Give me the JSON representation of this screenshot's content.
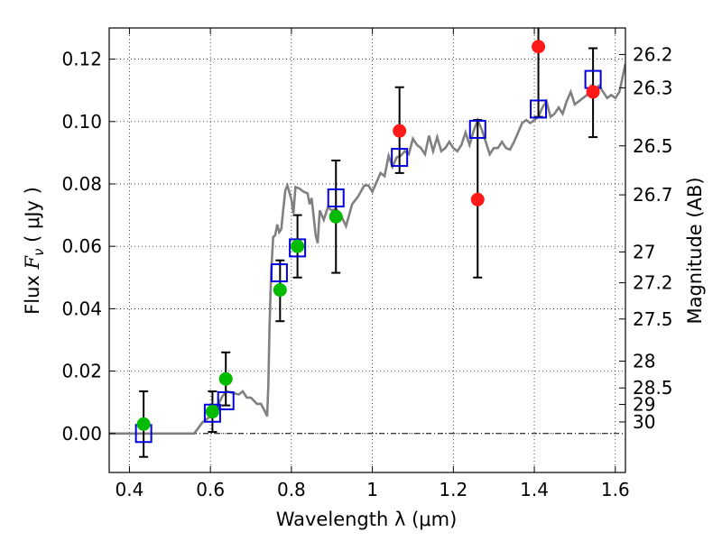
{
  "chart_data": {
    "type": "scatter",
    "title": "",
    "xlabel": "Wavelength  λ (μm)",
    "ylabel": "Flux  F_ν  ( μJy )",
    "ylabel_parts": {
      "prefix": "Flux ",
      "symbol": "F",
      "subscript": "ν",
      "suffix": "  ( μJy )"
    },
    "ylabel_right": "Magnitude (AB)",
    "xlim": [
      0.35,
      1.625
    ],
    "ylim": [
      -0.0125,
      0.13
    ],
    "grid": true,
    "x_ticks": [
      0.4,
      0.6,
      0.8,
      1.0,
      1.2,
      1.4,
      1.6
    ],
    "x_tick_labels": [
      "0.4",
      "0.6",
      "0.8",
      "1",
      "1.2",
      "1.4",
      "1.6"
    ],
    "y_ticks": [
      0.0,
      0.02,
      0.04,
      0.06,
      0.08,
      0.1,
      0.12
    ],
    "y_tick_labels": [
      "0.00",
      "0.02",
      "0.04",
      "0.06",
      "0.08",
      "0.10",
      "0.12"
    ],
    "right_ticks": [
      {
        "label": "26.2",
        "flux": 0.1215
      },
      {
        "label": "26.3",
        "flux": 0.1108
      },
      {
        "label": "26.5",
        "flux": 0.0922
      },
      {
        "label": "26.7",
        "flux": 0.0765
      },
      {
        "label": "27",
        "flux": 0.0582
      },
      {
        "label": "27.2",
        "flux": 0.0483
      },
      {
        "label": "27.5",
        "flux": 0.0367
      },
      {
        "label": "28",
        "flux": 0.0232
      },
      {
        "label": "28.5",
        "flux": 0.0146
      },
      {
        "label": "29",
        "flux": 0.0093
      },
      {
        "label": "30",
        "flux": 0.0037
      }
    ],
    "zero_line": 0.0,
    "colors": {
      "model": "#808080",
      "green": "#00bb00",
      "red": "#ff1a1a",
      "box": "#0000dd",
      "error": "#000000"
    },
    "series": [
      {
        "kind": "line",
        "points": [
          [
            0.35,
            0.0
          ],
          [
            0.56,
            0.0
          ],
          [
            0.58,
            0.0035
          ],
          [
            0.6,
            0.0055
          ],
          [
            0.615,
            0.0085
          ],
          [
            0.62,
            0.0095
          ],
          [
            0.63,
            0.012
          ],
          [
            0.64,
            0.0135
          ],
          [
            0.655,
            0.013
          ],
          [
            0.67,
            0.0125
          ],
          [
            0.68,
            0.0135
          ],
          [
            0.69,
            0.0115
          ],
          [
            0.7,
            0.0115
          ],
          [
            0.715,
            0.0095
          ],
          [
            0.725,
            0.0095
          ],
          [
            0.735,
            0.007
          ],
          [
            0.74,
            0.0055
          ],
          [
            0.743,
            0.015
          ],
          [
            0.746,
            0.035
          ],
          [
            0.75,
            0.052
          ],
          [
            0.755,
            0.063
          ],
          [
            0.76,
            0.0635
          ],
          [
            0.765,
            0.067
          ],
          [
            0.77,
            0.0645
          ],
          [
            0.775,
            0.0655
          ],
          [
            0.78,
            0.072
          ],
          [
            0.785,
            0.078
          ],
          [
            0.79,
            0.0795
          ],
          [
            0.8,
            0.075
          ],
          [
            0.805,
            0.0705
          ],
          [
            0.81,
            0.079
          ],
          [
            0.82,
            0.0785
          ],
          [
            0.83,
            0.0775
          ],
          [
            0.84,
            0.077
          ],
          [
            0.845,
            0.0735
          ],
          [
            0.85,
            0.0755
          ],
          [
            0.86,
            0.0635
          ],
          [
            0.865,
            0.061
          ],
          [
            0.87,
            0.0715
          ],
          [
            0.88,
            0.0685
          ],
          [
            0.89,
            0.0725
          ],
          [
            0.9,
            0.0715
          ],
          [
            0.91,
            0.072
          ],
          [
            0.92,
            0.0705
          ],
          [
            0.935,
            0.0665
          ],
          [
            0.95,
            0.0735
          ],
          [
            0.965,
            0.076
          ],
          [
            0.98,
            0.0795
          ],
          [
            0.99,
            0.0795
          ],
          [
            1.0,
            0.0775
          ],
          [
            1.01,
            0.0805
          ],
          [
            1.02,
            0.0835
          ],
          [
            1.03,
            0.0825
          ],
          [
            1.04,
            0.089
          ],
          [
            1.05,
            0.0855
          ],
          [
            1.06,
            0.0885
          ],
          [
            1.07,
            0.089
          ],
          [
            1.08,
            0.0905
          ],
          [
            1.09,
            0.0895
          ],
          [
            1.1,
            0.0945
          ],
          [
            1.11,
            0.0925
          ],
          [
            1.12,
            0.0915
          ],
          [
            1.13,
            0.0895
          ],
          [
            1.14,
            0.0955
          ],
          [
            1.15,
            0.0905
          ],
          [
            1.16,
            0.095
          ],
          [
            1.17,
            0.0905
          ],
          [
            1.18,
            0.0915
          ],
          [
            1.19,
            0.0935
          ],
          [
            1.2,
            0.0915
          ],
          [
            1.21,
            0.0905
          ],
          [
            1.22,
            0.0925
          ],
          [
            1.23,
            0.0965
          ],
          [
            1.24,
            0.0925
          ],
          [
            1.25,
            0.097
          ],
          [
            1.26,
            0.1005
          ],
          [
            1.27,
            0.0975
          ],
          [
            1.28,
            0.0935
          ],
          [
            1.29,
            0.0895
          ],
          [
            1.3,
            0.0915
          ],
          [
            1.31,
            0.0915
          ],
          [
            1.32,
            0.0935
          ],
          [
            1.33,
            0.0915
          ],
          [
            1.34,
            0.091
          ],
          [
            1.35,
            0.0935
          ],
          [
            1.36,
            0.0965
          ],
          [
            1.37,
            0.0995
          ],
          [
            1.38,
            0.1005
          ],
          [
            1.39,
            0.0995
          ],
          [
            1.4,
            0.1005
          ],
          [
            1.41,
            0.1015
          ],
          [
            1.42,
            0.1045
          ],
          [
            1.43,
            0.1065
          ],
          [
            1.44,
            0.1015
          ],
          [
            1.45,
            0.1025
          ],
          [
            1.46,
            0.1045
          ],
          [
            1.47,
            0.1025
          ],
          [
            1.48,
            0.1065
          ],
          [
            1.49,
            0.1095
          ],
          [
            1.5,
            0.1055
          ],
          [
            1.51,
            0.1065
          ],
          [
            1.52,
            0.1075
          ],
          [
            1.53,
            0.1085
          ],
          [
            1.54,
            0.1115
          ],
          [
            1.55,
            0.1105
          ],
          [
            1.56,
            0.1115
          ],
          [
            1.57,
            0.1095
          ],
          [
            1.58,
            0.1075
          ],
          [
            1.59,
            0.1085
          ],
          [
            1.6,
            0.1075
          ],
          [
            1.61,
            0.1095
          ],
          [
            1.625,
            0.1185
          ]
        ]
      },
      {
        "kind": "boxes",
        "points": [
          [
            0.435,
            0.0
          ],
          [
            0.605,
            0.0065
          ],
          [
            0.638,
            0.0105
          ],
          [
            0.77,
            0.0515
          ],
          [
            0.815,
            0.0595
          ],
          [
            0.91,
            0.0755
          ],
          [
            1.067,
            0.0885
          ],
          [
            1.26,
            0.0975
          ],
          [
            1.41,
            0.104
          ],
          [
            1.545,
            0.1135
          ]
        ]
      },
      {
        "kind": "circles_green",
        "points": [
          [
            0.435,
            0.003
          ],
          [
            0.605,
            0.007
          ],
          [
            0.638,
            0.0175
          ],
          [
            0.772,
            0.046
          ],
          [
            0.815,
            0.06
          ],
          [
            0.91,
            0.0695
          ]
        ]
      },
      {
        "kind": "circles_red",
        "points": [
          [
            1.067,
            0.097
          ],
          [
            1.26,
            0.075
          ],
          [
            1.41,
            0.124
          ],
          [
            1.545,
            0.1095
          ]
        ]
      },
      {
        "kind": "errorbars",
        "points": [
          {
            "x": 0.435,
            "y": 0.003,
            "lo": -0.0075,
            "hi": 0.0135
          },
          {
            "x": 0.605,
            "y": 0.007,
            "lo": 0.0005,
            "hi": 0.0135
          },
          {
            "x": 0.638,
            "y": 0.0175,
            "lo": 0.009,
            "hi": 0.026
          },
          {
            "x": 0.772,
            "y": 0.046,
            "lo": 0.036,
            "hi": 0.0555
          },
          {
            "x": 0.815,
            "y": 0.06,
            "lo": 0.05,
            "hi": 0.07
          },
          {
            "x": 0.91,
            "y": 0.0695,
            "lo": 0.0515,
            "hi": 0.0875
          },
          {
            "x": 1.067,
            "y": 0.097,
            "lo": 0.0835,
            "hi": 0.111
          },
          {
            "x": 1.26,
            "y": 0.075,
            "lo": 0.05,
            "hi": 0.1005
          },
          {
            "x": 1.41,
            "y": 0.124,
            "lo": 0.1015,
            "hi": 0.13
          },
          {
            "x": 1.545,
            "y": 0.1095,
            "lo": 0.095,
            "hi": 0.1235
          }
        ]
      }
    ]
  }
}
